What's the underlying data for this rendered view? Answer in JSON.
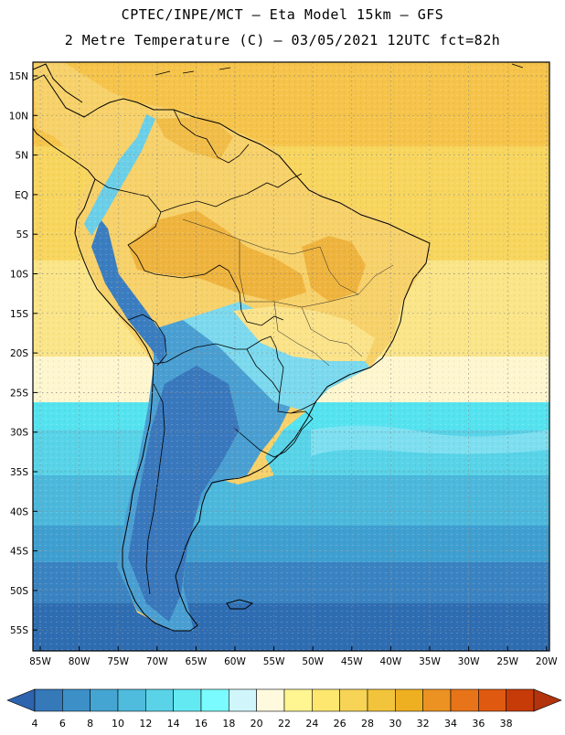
{
  "header": {
    "line1": "CPTEC/INPE/MCT –  Eta Model 15km – GFS",
    "line2": "2 Metre Temperature (C) – 03/05/2021 12UTC fct=82h"
  },
  "map": {
    "lat_labels": [
      "15N",
      "10N",
      "5N",
      "EQ",
      "5S",
      "10S",
      "15S",
      "20S",
      "25S",
      "30S",
      "35S",
      "40S",
      "45S",
      "50S",
      "55S"
    ],
    "lon_labels": [
      "85W",
      "80W",
      "75W",
      "70W",
      "65W",
      "60W",
      "55W",
      "50W",
      "45W",
      "40W",
      "35W",
      "30W",
      "25W",
      "20W"
    ],
    "ocean_bands": [
      {
        "value": 28,
        "color": "#f6c44a"
      },
      {
        "value": 26,
        "color": "#f8d65e"
      },
      {
        "value": 24,
        "color": "#fbe589"
      },
      {
        "value": 22,
        "color": "#fdf6cf"
      },
      {
        "value": 16,
        "color": "#55e3f0"
      },
      {
        "value": 14,
        "color": "#58d3e8"
      },
      {
        "value": 12,
        "color": "#4cb8dc"
      },
      {
        "value": 10,
        "color": "#3f9fd0"
      },
      {
        "value": 8,
        "color": "#3a83c2"
      },
      {
        "value": 6,
        "color": "#2f6db2"
      }
    ]
  },
  "colorbar": {
    "colors": [
      "#2e63ad",
      "#3579b9",
      "#3c90c7",
      "#45a5d2",
      "#4fbbdd",
      "#5ad3e8",
      "#63e9f2",
      "#7afbff",
      "#d0f6fc",
      "#fff9de",
      "#fff591",
      "#fde76f",
      "#f7d455",
      "#f1c43b",
      "#eeb021",
      "#ec9222",
      "#e77419",
      "#df5a10",
      "#c63b08",
      "#b2330c"
    ],
    "labels": [
      "4",
      "6",
      "8",
      "10",
      "12",
      "14",
      "16",
      "18",
      "20",
      "22",
      "24",
      "26",
      "28",
      "30",
      "32",
      "34",
      "36",
      "38"
    ]
  }
}
